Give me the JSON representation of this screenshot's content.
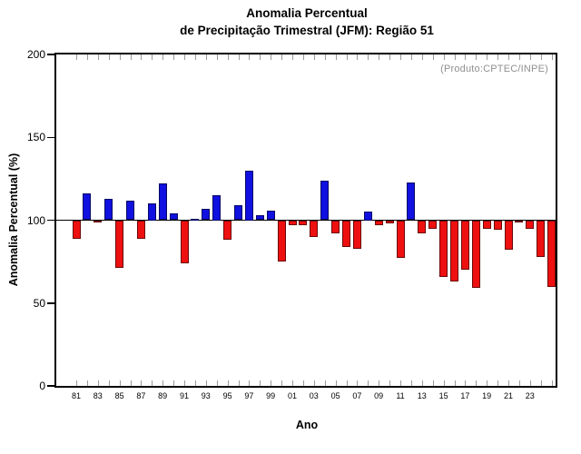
{
  "chart_data": {
    "type": "bar",
    "title": "Anomalia Percentual de Precipitação Trimestral (JFM): Região 51",
    "title_line1": "Anomalia Percentual",
    "title_line2": "de Precipitação Trimestral (JFM): Região 51",
    "annotation": "(Produto:CPTEC/INPE)",
    "xlabel": "Ano",
    "ylabel": "Anomalia Percentual (%)",
    "ylim": [
      0,
      200
    ],
    "yticks": [
      0,
      50,
      100,
      150,
      200
    ],
    "baseline": 100,
    "legend": "none",
    "grid": "off",
    "x_tick_labels": [
      "81",
      "83",
      "85",
      "87",
      "89",
      "91",
      "93",
      "95",
      "97",
      "99",
      "01",
      "03",
      "05",
      "07",
      "09",
      "11",
      "13",
      "15",
      "17",
      "19",
      "21",
      "23"
    ],
    "years": [
      1981,
      1982,
      1983,
      1984,
      1985,
      1986,
      1987,
      1988,
      1989,
      1990,
      1991,
      1992,
      1993,
      1994,
      1995,
      1996,
      1997,
      1998,
      1999,
      2000,
      2001,
      2002,
      2003,
      2004,
      2005,
      2006,
      2007,
      2008,
      2009,
      2010,
      2011,
      2012,
      2013,
      2014,
      2015,
      2016,
      2017,
      2018,
      2019,
      2020,
      2021,
      2022,
      2023,
      2024,
      2025
    ],
    "values": [
      89,
      116,
      99,
      113,
      71,
      112,
      89,
      110,
      122,
      104,
      74,
      101,
      107,
      115,
      88,
      109,
      130,
      103,
      106,
      75,
      97,
      97,
      90,
      124,
      92,
      84,
      83,
      105,
      97,
      98,
      77,
      123,
      92,
      95,
      66,
      63,
      70,
      59,
      95,
      94,
      82,
      99,
      95,
      78,
      60
    ],
    "colors": {
      "above_baseline": "#1010e0",
      "below_baseline": "#ee1010",
      "baseline_line": "#000000",
      "frame": "#000000",
      "annotation_text": "#909090"
    }
  }
}
